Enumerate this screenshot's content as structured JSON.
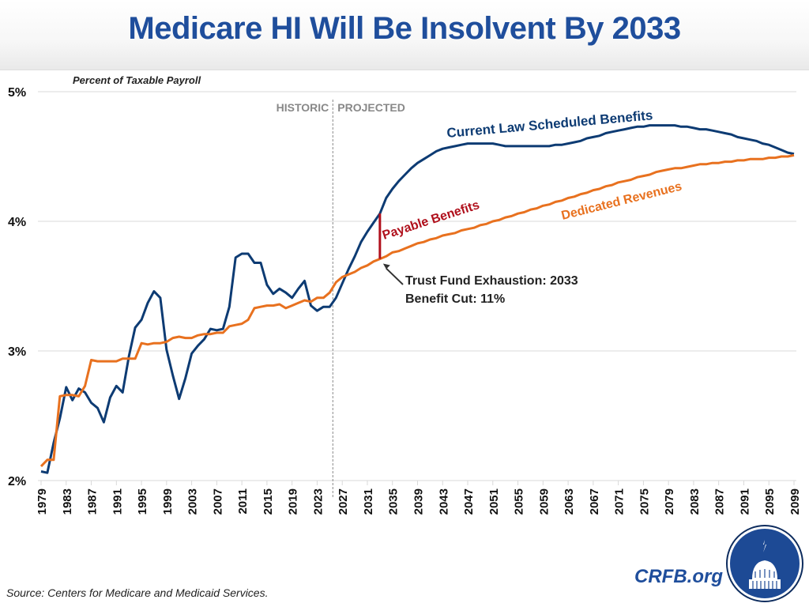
{
  "header": {
    "title": "Medicare HI Will Be Insolvent By 2033"
  },
  "footer": {
    "source": "Source: Centers for Medicare and Medicaid Services.",
    "brand": "CRFB.org",
    "logo_icon": "capitol-dome-logo-icon"
  },
  "colors": {
    "title": "#1f4e9c",
    "costs": "#0d3b73",
    "revenues": "#e8711f",
    "payable": "#b0101c",
    "grid": "#d9d9d9",
    "divider": "#888888"
  },
  "chart_data": {
    "type": "line",
    "title": "Medicare HI Will Be Insolvent By 2033",
    "ylabel": "Percent of Taxable Payroll",
    "xlabel": "",
    "ylim": [
      2,
      5
    ],
    "yticks": [
      "2%",
      "3%",
      "4%",
      "5%"
    ],
    "ytick_values": [
      2,
      3,
      4,
      5
    ],
    "xlim": [
      1979,
      2099
    ],
    "xticks": [
      "1979",
      "1983",
      "1987",
      "1991",
      "1995",
      "1999",
      "2003",
      "2007",
      "2011",
      "2015",
      "2019",
      "2023",
      "2027",
      "2031",
      "2035",
      "2039",
      "2043",
      "2047",
      "2051",
      "2055",
      "2059",
      "2063",
      "2067",
      "2071",
      "2075",
      "2079",
      "2083",
      "2087",
      "2091",
      "2095",
      "2099"
    ],
    "grid": true,
    "legend": "inline-labels",
    "divider": {
      "year": 2025.5,
      "left_label": "HISTORIC",
      "right_label": "PROJECTED"
    },
    "series": [
      {
        "name": "Current Law Scheduled Benefits",
        "key": "costs",
        "points": [
          [
            1979,
            2.07
          ],
          [
            1980,
            2.06
          ],
          [
            1981,
            2.29
          ],
          [
            1982,
            2.48
          ],
          [
            1983,
            2.72
          ],
          [
            1984,
            2.62
          ],
          [
            1985,
            2.71
          ],
          [
            1986,
            2.68
          ],
          [
            1987,
            2.6
          ],
          [
            1988,
            2.56
          ],
          [
            1989,
            2.45
          ],
          [
            1990,
            2.64
          ],
          [
            1991,
            2.73
          ],
          [
            1992,
            2.68
          ],
          [
            1993,
            2.96
          ],
          [
            1994,
            3.18
          ],
          [
            1995,
            3.24
          ],
          [
            1996,
            3.37
          ],
          [
            1997,
            3.46
          ],
          [
            1998,
            3.41
          ],
          [
            1999,
            3.01
          ],
          [
            2000,
            2.81
          ],
          [
            2001,
            2.63
          ],
          [
            2002,
            2.79
          ],
          [
            2003,
            2.98
          ],
          [
            2004,
            3.04
          ],
          [
            2005,
            3.09
          ],
          [
            2006,
            3.17
          ],
          [
            2007,
            3.16
          ],
          [
            2008,
            3.17
          ],
          [
            2009,
            3.34
          ],
          [
            2010,
            3.72
          ],
          [
            2011,
            3.75
          ],
          [
            2012,
            3.75
          ],
          [
            2013,
            3.68
          ],
          [
            2014,
            3.68
          ],
          [
            2015,
            3.51
          ],
          [
            2016,
            3.44
          ],
          [
            2017,
            3.48
          ],
          [
            2018,
            3.45
          ],
          [
            2019,
            3.41
          ],
          [
            2020,
            3.48
          ],
          [
            2021,
            3.54
          ],
          [
            2022,
            3.35
          ],
          [
            2023,
            3.31
          ],
          [
            2024,
            3.34
          ],
          [
            2025,
            3.34
          ],
          [
            2026,
            3.41
          ],
          [
            2027,
            3.52
          ],
          [
            2028,
            3.63
          ],
          [
            2029,
            3.73
          ],
          [
            2030,
            3.84
          ],
          [
            2031,
            3.92
          ],
          [
            2032,
            3.99
          ],
          [
            2033,
            4.06
          ],
          [
            2034,
            4.18
          ],
          [
            2035,
            4.25
          ],
          [
            2036,
            4.31
          ],
          [
            2037,
            4.36
          ],
          [
            2038,
            4.41
          ],
          [
            2039,
            4.45
          ],
          [
            2040,
            4.48
          ],
          [
            2041,
            4.51
          ],
          [
            2042,
            4.54
          ],
          [
            2043,
            4.56
          ],
          [
            2044,
            4.57
          ],
          [
            2045,
            4.58
          ],
          [
            2046,
            4.59
          ],
          [
            2047,
            4.6
          ],
          [
            2048,
            4.6
          ],
          [
            2049,
            4.6
          ],
          [
            2050,
            4.6
          ],
          [
            2051,
            4.6
          ],
          [
            2052,
            4.59
          ],
          [
            2053,
            4.58
          ],
          [
            2054,
            4.58
          ],
          [
            2055,
            4.58
          ],
          [
            2056,
            4.58
          ],
          [
            2057,
            4.58
          ],
          [
            2058,
            4.58
          ],
          [
            2059,
            4.58
          ],
          [
            2060,
            4.58
          ],
          [
            2061,
            4.59
          ],
          [
            2062,
            4.59
          ],
          [
            2063,
            4.6
          ],
          [
            2064,
            4.61
          ],
          [
            2065,
            4.62
          ],
          [
            2066,
            4.64
          ],
          [
            2067,
            4.65
          ],
          [
            2068,
            4.66
          ],
          [
            2069,
            4.68
          ],
          [
            2070,
            4.69
          ],
          [
            2071,
            4.7
          ],
          [
            2072,
            4.71
          ],
          [
            2073,
            4.72
          ],
          [
            2074,
            4.73
          ],
          [
            2075,
            4.73
          ],
          [
            2076,
            4.74
          ],
          [
            2077,
            4.74
          ],
          [
            2078,
            4.74
          ],
          [
            2079,
            4.74
          ],
          [
            2080,
            4.74
          ],
          [
            2081,
            4.73
          ],
          [
            2082,
            4.73
          ],
          [
            2083,
            4.72
          ],
          [
            2084,
            4.71
          ],
          [
            2085,
            4.71
          ],
          [
            2086,
            4.7
          ],
          [
            2087,
            4.69
          ],
          [
            2088,
            4.68
          ],
          [
            2089,
            4.67
          ],
          [
            2090,
            4.65
          ],
          [
            2091,
            4.64
          ],
          [
            2092,
            4.63
          ],
          [
            2093,
            4.62
          ],
          [
            2094,
            4.6
          ],
          [
            2095,
            4.59
          ],
          [
            2096,
            4.57
          ],
          [
            2097,
            4.55
          ],
          [
            2098,
            4.53
          ],
          [
            2099,
            4.52
          ]
        ]
      },
      {
        "name": "Dedicated Revenues",
        "key": "revenues",
        "points": [
          [
            1979,
            2.11
          ],
          [
            1980,
            2.16
          ],
          [
            1981,
            2.16
          ],
          [
            1982,
            2.65
          ],
          [
            1983,
            2.66
          ],
          [
            1984,
            2.66
          ],
          [
            1985,
            2.65
          ],
          [
            1986,
            2.73
          ],
          [
            1987,
            2.93
          ],
          [
            1988,
            2.92
          ],
          [
            1989,
            2.92
          ],
          [
            1990,
            2.92
          ],
          [
            1991,
            2.92
          ],
          [
            1992,
            2.94
          ],
          [
            1993,
            2.94
          ],
          [
            1994,
            2.94
          ],
          [
            1995,
            3.06
          ],
          [
            1996,
            3.05
          ],
          [
            1997,
            3.06
          ],
          [
            1998,
            3.06
          ],
          [
            1999,
            3.07
          ],
          [
            2000,
            3.1
          ],
          [
            2001,
            3.11
          ],
          [
            2002,
            3.1
          ],
          [
            2003,
            3.1
          ],
          [
            2004,
            3.12
          ],
          [
            2005,
            3.13
          ],
          [
            2006,
            3.13
          ],
          [
            2007,
            3.14
          ],
          [
            2008,
            3.14
          ],
          [
            2009,
            3.19
          ],
          [
            2010,
            3.2
          ],
          [
            2011,
            3.21
          ],
          [
            2012,
            3.24
          ],
          [
            2013,
            3.33
          ],
          [
            2014,
            3.34
          ],
          [
            2015,
            3.35
          ],
          [
            2016,
            3.35
          ],
          [
            2017,
            3.36
          ],
          [
            2018,
            3.33
          ],
          [
            2019,
            3.35
          ],
          [
            2020,
            3.37
          ],
          [
            2021,
            3.39
          ],
          [
            2022,
            3.38
          ],
          [
            2023,
            3.41
          ],
          [
            2024,
            3.41
          ],
          [
            2025,
            3.45
          ],
          [
            2026,
            3.53
          ],
          [
            2027,
            3.57
          ],
          [
            2028,
            3.59
          ],
          [
            2029,
            3.61
          ],
          [
            2030,
            3.64
          ],
          [
            2031,
            3.66
          ],
          [
            2032,
            3.69
          ],
          [
            2033,
            3.71
          ],
          [
            2034,
            3.73
          ],
          [
            2035,
            3.76
          ],
          [
            2036,
            3.77
          ],
          [
            2037,
            3.79
          ],
          [
            2038,
            3.81
          ],
          [
            2039,
            3.83
          ],
          [
            2040,
            3.84
          ],
          [
            2041,
            3.86
          ],
          [
            2042,
            3.87
          ],
          [
            2043,
            3.89
          ],
          [
            2044,
            3.9
          ],
          [
            2045,
            3.91
          ],
          [
            2046,
            3.93
          ],
          [
            2047,
            3.94
          ],
          [
            2048,
            3.95
          ],
          [
            2049,
            3.97
          ],
          [
            2050,
            3.98
          ],
          [
            2051,
            4.0
          ],
          [
            2052,
            4.01
          ],
          [
            2053,
            4.03
          ],
          [
            2054,
            4.04
          ],
          [
            2055,
            4.06
          ],
          [
            2056,
            4.07
          ],
          [
            2057,
            4.09
          ],
          [
            2058,
            4.1
          ],
          [
            2059,
            4.12
          ],
          [
            2060,
            4.13
          ],
          [
            2061,
            4.15
          ],
          [
            2062,
            4.16
          ],
          [
            2063,
            4.18
          ],
          [
            2064,
            4.19
          ],
          [
            2065,
            4.21
          ],
          [
            2066,
            4.22
          ],
          [
            2067,
            4.24
          ],
          [
            2068,
            4.25
          ],
          [
            2069,
            4.27
          ],
          [
            2070,
            4.28
          ],
          [
            2071,
            4.3
          ],
          [
            2072,
            4.31
          ],
          [
            2073,
            4.32
          ],
          [
            2074,
            4.34
          ],
          [
            2075,
            4.35
          ],
          [
            2076,
            4.36
          ],
          [
            2077,
            4.38
          ],
          [
            2078,
            4.39
          ],
          [
            2079,
            4.4
          ],
          [
            2080,
            4.41
          ],
          [
            2081,
            4.41
          ],
          [
            2082,
            4.42
          ],
          [
            2083,
            4.43
          ],
          [
            2084,
            4.44
          ],
          [
            2085,
            4.44
          ],
          [
            2086,
            4.45
          ],
          [
            2087,
            4.45
          ],
          [
            2088,
            4.46
          ],
          [
            2089,
            4.46
          ],
          [
            2090,
            4.47
          ],
          [
            2091,
            4.47
          ],
          [
            2092,
            4.48
          ],
          [
            2093,
            4.48
          ],
          [
            2094,
            4.48
          ],
          [
            2095,
            4.49
          ],
          [
            2096,
            4.49
          ],
          [
            2097,
            4.5
          ],
          [
            2098,
            4.5
          ],
          [
            2099,
            4.51
          ]
        ]
      }
    ],
    "annotations": [
      {
        "key": "payable",
        "text": "Payable Benefits",
        "year": 2033,
        "from": 3.71,
        "to": 4.06
      },
      {
        "key": "exhaustion",
        "lines": [
          "Trust Fund Exhaustion: 2033",
          "Benefit Cut: 11%"
        ],
        "arrow_to_year": 2033,
        "arrow_to_value": 3.71
      }
    ]
  }
}
